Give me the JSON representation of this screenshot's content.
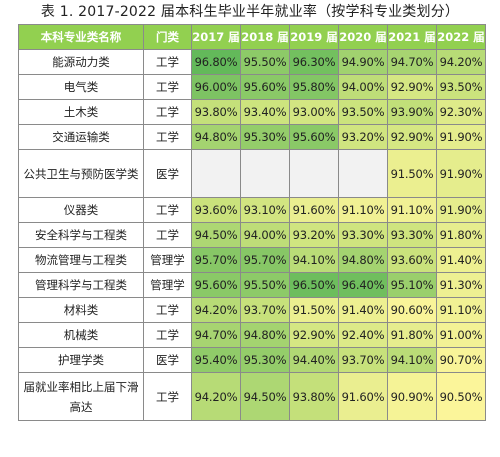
{
  "caption": "表 1. 2017-2022 届本科生毕业半年就业率（按学科专业类划分）",
  "headers": [
    "本科专业类名称",
    "门类",
    "2017 届",
    "2018 届",
    "2019 届",
    "2020 届",
    "2021 届",
    "2022 届"
  ],
  "rows": [
    {
      "name": "能源动力类",
      "cat": "工学",
      "vals": [
        "96.80%",
        "95.50%",
        "96.30%",
        "94.90%",
        "94.70%",
        "94.20%"
      ]
    },
    {
      "name": "电气类",
      "cat": "工学",
      "vals": [
        "96.00%",
        "95.60%",
        "95.80%",
        "94.00%",
        "92.90%",
        "93.50%"
      ]
    },
    {
      "name": "土木类",
      "cat": "工学",
      "vals": [
        "93.80%",
        "93.40%",
        "93.00%",
        "93.50%",
        "93.90%",
        "92.30%"
      ]
    },
    {
      "name": "交通运输类",
      "cat": "工学",
      "vals": [
        "94.80%",
        "95.30%",
        "95.60%",
        "93.20%",
        "92.90%",
        "91.90%"
      ]
    },
    {
      "name": "公共卫生与预防医学类",
      "cat": "医学",
      "vals": [
        "",
        "",
        "",
        "",
        "91.50%",
        "91.90%"
      ]
    },
    {
      "name": "仪器类",
      "cat": "工学",
      "vals": [
        "93.60%",
        "93.10%",
        "91.60%",
        "91.10%",
        "91.10%",
        "91.90%"
      ]
    },
    {
      "name": "安全科学与工程类",
      "cat": "工学",
      "vals": [
        "94.50%",
        "94.00%",
        "93.20%",
        "93.30%",
        "93.30%",
        "91.80%"
      ]
    },
    {
      "name": "物流管理与工程类",
      "cat": "管理学",
      "vals": [
        "95.70%",
        "95.70%",
        "94.10%",
        "94.80%",
        "93.60%",
        "91.40%"
      ]
    },
    {
      "name": "管理科学与工程类",
      "cat": "管理学",
      "vals": [
        "95.60%",
        "95.50%",
        "96.50%",
        "96.40%",
        "95.10%",
        "91.30%"
      ]
    },
    {
      "name": "材料类",
      "cat": "工学",
      "vals": [
        "94.20%",
        "93.70%",
        "91.50%",
        "91.40%",
        "90.60%",
        "91.10%"
      ]
    },
    {
      "name": "机械类",
      "cat": "工学",
      "vals": [
        "94.70%",
        "94.80%",
        "92.90%",
        "92.40%",
        "91.80%",
        "91.00%"
      ]
    },
    {
      "name": "护理学类",
      "cat": "医学",
      "vals": [
        "95.40%",
        "95.30%",
        "94.40%",
        "93.70%",
        "94.10%",
        "90.70%"
      ]
    },
    {
      "name": "届就业率相比上届下滑高达",
      "cat": "工学",
      "vals": [
        "94.20%",
        "94.50%",
        "93.80%",
        "91.60%",
        "90.90%",
        "90.50%"
      ]
    }
  ],
  "colors": {
    "header_bg": "#92d050",
    "scale_low": "#fbf59a",
    "scale_mid": "#c9e27c",
    "scale_high": "#63b95a",
    "empty_cell": "#f2f2f2"
  }
}
